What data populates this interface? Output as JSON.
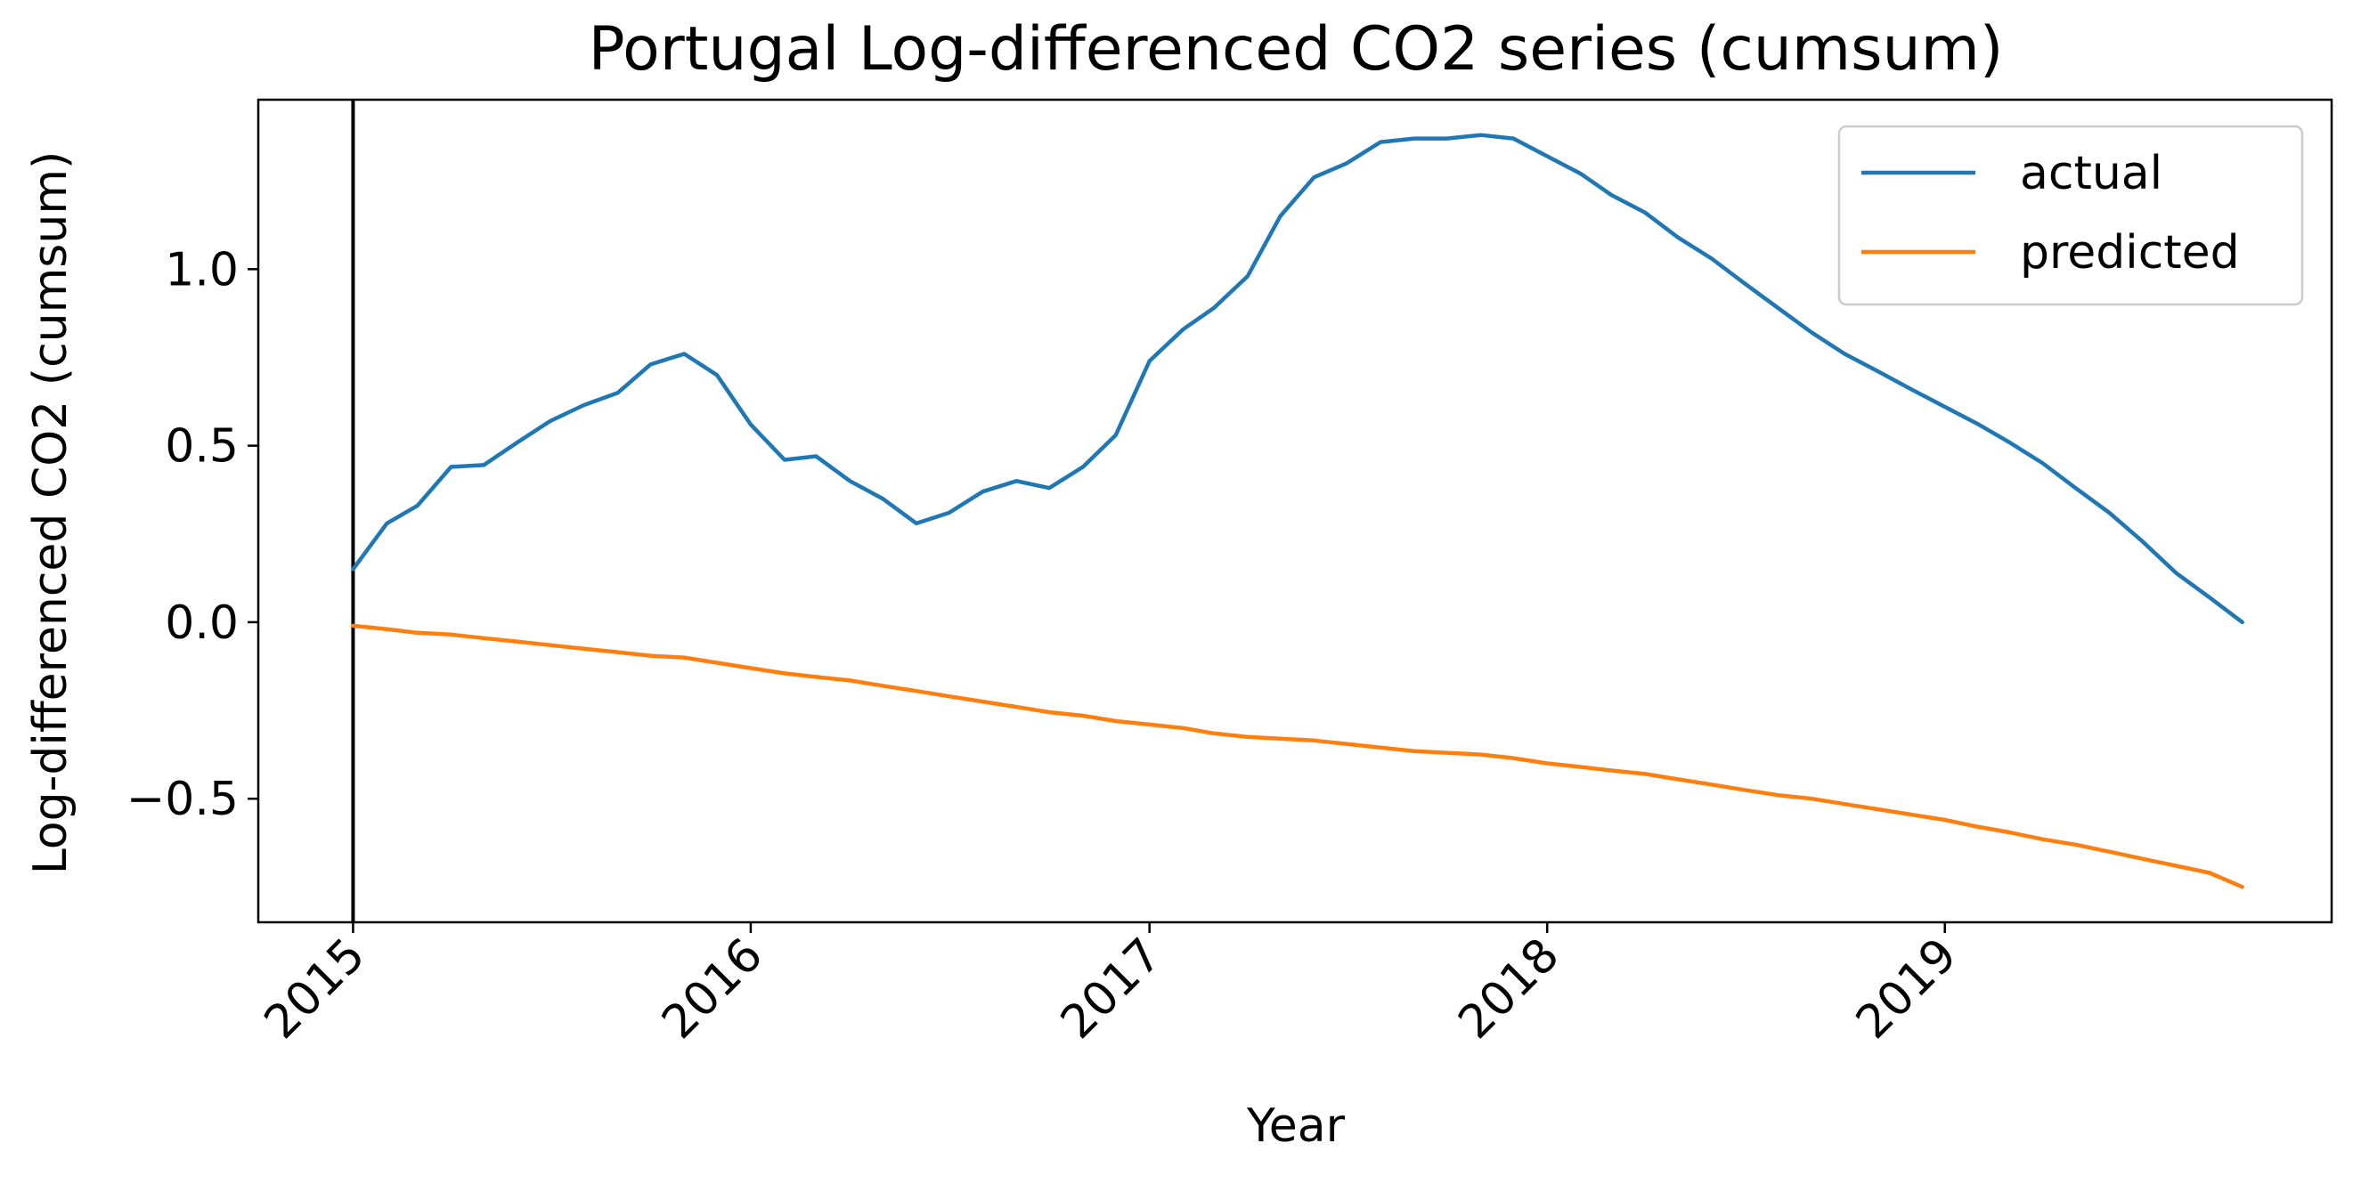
{
  "chart_data": {
    "type": "line",
    "title": "Portugal Log-differenced CO2 series (cumsum)",
    "xlabel": "Year",
    "ylabel": "Log-differenced CO2 (cumsum)",
    "x_ticks": [
      "2015",
      "2016",
      "2017",
      "2018",
      "2019"
    ],
    "y_ticks": [
      "−0.5",
      "0.0",
      "0.5",
      "1.0"
    ],
    "y_tick_values": [
      -0.5,
      0.0,
      0.5,
      1.0
    ],
    "xlim": [
      "2014-10-06",
      "2019-12-22"
    ],
    "ylim": [
      -0.85,
      1.48
    ],
    "grid": false,
    "legend_position": "top-right",
    "vertical_line": "2015-01",
    "x": [
      "2015-01",
      "2015-02",
      "2015-03",
      "2015-04",
      "2015-05",
      "2015-06",
      "2015-07",
      "2015-08",
      "2015-09",
      "2015-10",
      "2015-11",
      "2015-12",
      "2016-01",
      "2016-02",
      "2016-03",
      "2016-04",
      "2016-05",
      "2016-06",
      "2016-07",
      "2016-08",
      "2016-09",
      "2016-10",
      "2016-11",
      "2016-12",
      "2017-01",
      "2017-02",
      "2017-03",
      "2017-04",
      "2017-05",
      "2017-06",
      "2017-07",
      "2017-08",
      "2017-09",
      "2017-10",
      "2017-11",
      "2017-12",
      "2018-01",
      "2018-02",
      "2018-03",
      "2018-04",
      "2018-05",
      "2018-06",
      "2018-07",
      "2018-08",
      "2018-09",
      "2018-10",
      "2018-11",
      "2018-12",
      "2019-01",
      "2019-02",
      "2019-03",
      "2019-04",
      "2019-05",
      "2019-06",
      "2019-07",
      "2019-08",
      "2019-09",
      "2019-10"
    ],
    "series": [
      {
        "name": "actual",
        "color": "#1f77b4",
        "values": [
          0.15,
          0.28,
          0.33,
          0.44,
          0.445,
          0.51,
          0.57,
          0.615,
          0.65,
          0.73,
          0.76,
          0.7,
          0.56,
          0.46,
          0.47,
          0.4,
          0.35,
          0.28,
          0.31,
          0.37,
          0.4,
          0.38,
          0.44,
          0.53,
          0.74,
          0.83,
          0.89,
          0.98,
          1.15,
          1.26,
          1.3,
          1.36,
          1.37,
          1.37,
          1.38,
          1.37,
          1.32,
          1.27,
          1.21,
          1.16,
          1.09,
          1.03,
          0.96,
          0.89,
          0.82,
          0.76,
          0.71,
          0.66,
          0.61,
          0.56,
          0.51,
          0.45,
          0.38,
          0.31,
          0.23,
          0.14,
          0.07,
          0.0
        ]
      },
      {
        "name": "predicted",
        "color": "#ff7f0e",
        "values": [
          -0.01,
          -0.02,
          -0.03,
          -0.035,
          -0.045,
          -0.055,
          -0.065,
          -0.075,
          -0.085,
          -0.095,
          -0.1,
          -0.115,
          -0.13,
          -0.145,
          -0.155,
          -0.165,
          -0.18,
          -0.195,
          -0.21,
          -0.225,
          -0.24,
          -0.255,
          -0.265,
          -0.28,
          -0.29,
          -0.3,
          -0.315,
          -0.325,
          -0.33,
          -0.335,
          -0.345,
          -0.355,
          -0.365,
          -0.37,
          -0.375,
          -0.385,
          -0.4,
          -0.41,
          -0.42,
          -0.43,
          -0.445,
          -0.46,
          -0.475,
          -0.49,
          -0.5,
          -0.515,
          -0.53,
          -0.545,
          -0.56,
          -0.58,
          -0.595,
          -0.615,
          -0.63,
          -0.65,
          -0.67,
          -0.69,
          -0.71,
          -0.75
        ]
      }
    ]
  }
}
